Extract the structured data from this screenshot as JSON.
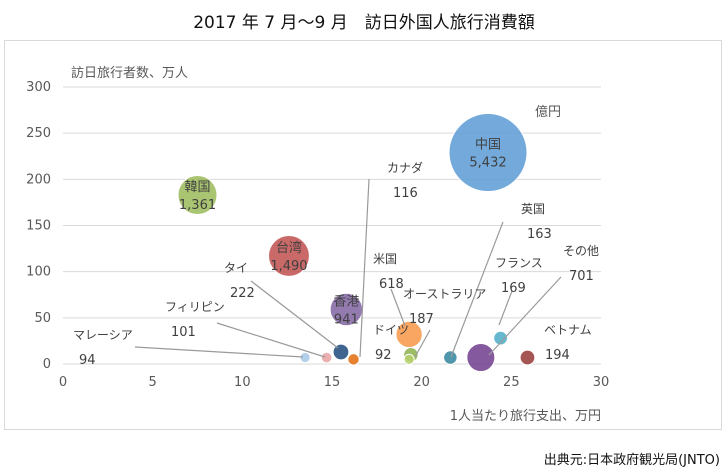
{
  "title": "2017 年 7 月～9 月　訪日外国人旅行消費額",
  "source": "出典元:日本政府観光局(JNTO)",
  "chart_data": {
    "type": "bubble",
    "title": "2017 年 7 月～9 月　訪日外国人旅行消費額",
    "xlabel": "1人当たり旅行支出、万円",
    "ylabel": "訪日旅行者数、万人",
    "size_unit": "億円",
    "xlim": [
      0,
      30
    ],
    "ylim": [
      0,
      300
    ],
    "xticks": [
      0,
      5,
      10,
      15,
      20,
      25,
      30
    ],
    "yticks": [
      0,
      50,
      100,
      150,
      200,
      250,
      300
    ],
    "grid": "horizontal",
    "points": [
      {
        "name": "中国",
        "x": 23.7,
        "y": 229,
        "value": "5,432",
        "color": "#5b9bd5"
      },
      {
        "name": "韓国",
        "x": 7.5,
        "y": 183,
        "value": "1,361",
        "color": "#9bbb59"
      },
      {
        "name": "台湾",
        "x": 12.6,
        "y": 117,
        "value": "1,490",
        "color": "#c0504d"
      },
      {
        "name": "香港",
        "x": 15.8,
        "y": 59,
        "value": "941",
        "color": "#8064a2"
      },
      {
        "name": "米国",
        "x": 19.3,
        "y": 32,
        "value": "618",
        "color": "#f79646"
      },
      {
        "name": "フランス",
        "x": 24.4,
        "y": 28,
        "value": "169",
        "color": "#4bacc6"
      },
      {
        "name": "カナダ",
        "x": 16.2,
        "y": 5,
        "value": "116",
        "color": "#e26b0a"
      },
      {
        "name": "英国",
        "x": 21.6,
        "y": 7,
        "value": "163",
        "color": "#31859c"
      },
      {
        "name": "タイ",
        "x": 15.5,
        "y": 13,
        "value": "222",
        "color": "#1f497d"
      },
      {
        "name": "フィリピン",
        "x": 14.7,
        "y": 7,
        "value": "101",
        "color": "#e6a1a0"
      },
      {
        "name": "マレーシア",
        "x": 13.5,
        "y": 7,
        "value": "94",
        "color": "#a6c8e8"
      },
      {
        "name": "オーストラリア",
        "x": 19.4,
        "y": 10,
        "value": "187",
        "color": "#8bb04a"
      },
      {
        "name": "ドイツ",
        "x": 19.3,
        "y": 5,
        "value": "92",
        "color": "#b7d06b"
      },
      {
        "name": "その他",
        "x": 23.3,
        "y": 7,
        "value": "701",
        "color": "#6f3c8c"
      },
      {
        "name": "ベトナム",
        "x": 25.9,
        "y": 7,
        "value": "194",
        "color": "#953735"
      }
    ]
  }
}
